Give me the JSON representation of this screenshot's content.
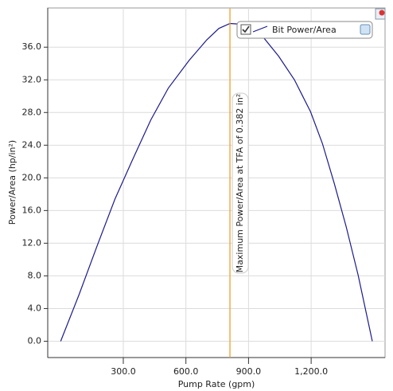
{
  "chart_data": {
    "type": "line",
    "x_label": "Pump Rate (gpm)",
    "y_label": "Power/Area (hp/in²)",
    "x": [
      0,
      88,
      172,
      260,
      344,
      432,
      516,
      616,
      700,
      758,
      811,
      872,
      949,
      1044,
      1120,
      1197,
      1254,
      1311,
      1368,
      1425,
      1493
    ],
    "series": [
      {
        "name": "Bit Power/Area",
        "color": "#1a1a8c",
        "values": [
          0,
          5.7,
          11.5,
          17.4,
          22.2,
          27.1,
          31.0,
          34.4,
          36.9,
          38.3,
          38.9,
          38.8,
          37.9,
          34.9,
          32.0,
          28.1,
          24.2,
          19.3,
          14.0,
          8.1,
          0
        ]
      }
    ],
    "xlim": [
      -62,
      1554
    ],
    "ylim": [
      -2,
      40.8
    ],
    "xticks": [
      {
        "value": 300,
        "label": "300.0"
      },
      {
        "value": 600,
        "label": "600.0"
      },
      {
        "value": 900,
        "label": "900.0"
      },
      {
        "value": 1200,
        "label": "1,200.0"
      }
    ],
    "yticks": [
      {
        "value": 0,
        "label": "0.0"
      },
      {
        "value": 4,
        "label": "4.0"
      },
      {
        "value": 8,
        "label": "8.0"
      },
      {
        "value": 12,
        "label": "12.0"
      },
      {
        "value": 16,
        "label": "16.0"
      },
      {
        "value": 20,
        "label": "20.0"
      },
      {
        "value": 24,
        "label": "24.0"
      },
      {
        "value": 28,
        "label": "28.0"
      },
      {
        "value": 32,
        "label": "32.0"
      },
      {
        "value": 36,
        "label": "36.0"
      }
    ],
    "grid": true,
    "marker": {
      "x": 811,
      "color": "#f0a030",
      "label": "Maximum Power/Area at TFA of 0.382 in²"
    },
    "legend": "top-right"
  }
}
